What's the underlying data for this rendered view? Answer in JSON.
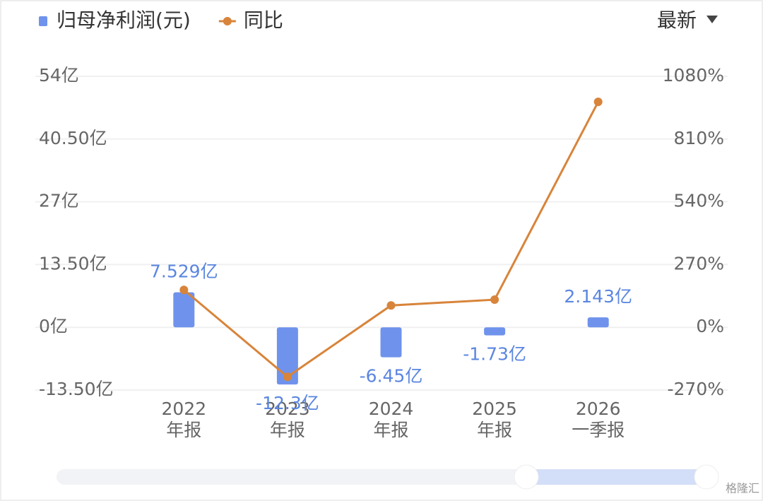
{
  "chart_data": {
    "type": "bar",
    "categories": [
      "2022年报",
      "2023年报",
      "2024年报",
      "2025年报",
      "2026一季报"
    ],
    "series": [
      {
        "name": "归母净利润(元)",
        "type": "bar",
        "color": "#6f93ec",
        "values": [
          7.529,
          -12.3,
          -6.45,
          -1.73,
          2.143
        ],
        "value_labels": [
          "7.529亿",
          "-12.3亿",
          "-6.45亿",
          "-1.73亿",
          "2.143亿"
        ]
      },
      {
        "name": "同比",
        "type": "line",
        "axis": "y2",
        "color": "#d8843a",
        "values": [
          161,
          -213,
          94,
          119,
          970
        ]
      }
    ],
    "ylim": [
      -13.5,
      54
    ],
    "yticks": [
      {
        "value": -13.5,
        "label": "-13.50亿"
      },
      {
        "value": 0,
        "label": "0亿"
      },
      {
        "value": 13.5,
        "label": "13.50亿"
      },
      {
        "value": 27,
        "label": "27亿"
      },
      {
        "value": 40.5,
        "label": "40.50亿"
      },
      {
        "value": 54,
        "label": "54亿"
      }
    ],
    "y2lim": [
      -270,
      1080
    ],
    "y2ticks": [
      {
        "value": -270,
        "label": "-270%"
      },
      {
        "value": 0,
        "label": "0%"
      },
      {
        "value": 270,
        "label": "270%"
      },
      {
        "value": 540,
        "label": "540%"
      },
      {
        "value": 810,
        "label": "810%"
      },
      {
        "value": 1080,
        "label": "1080%"
      }
    ],
    "grid": true,
    "selector": "最新",
    "watermark": "格隆汇"
  }
}
